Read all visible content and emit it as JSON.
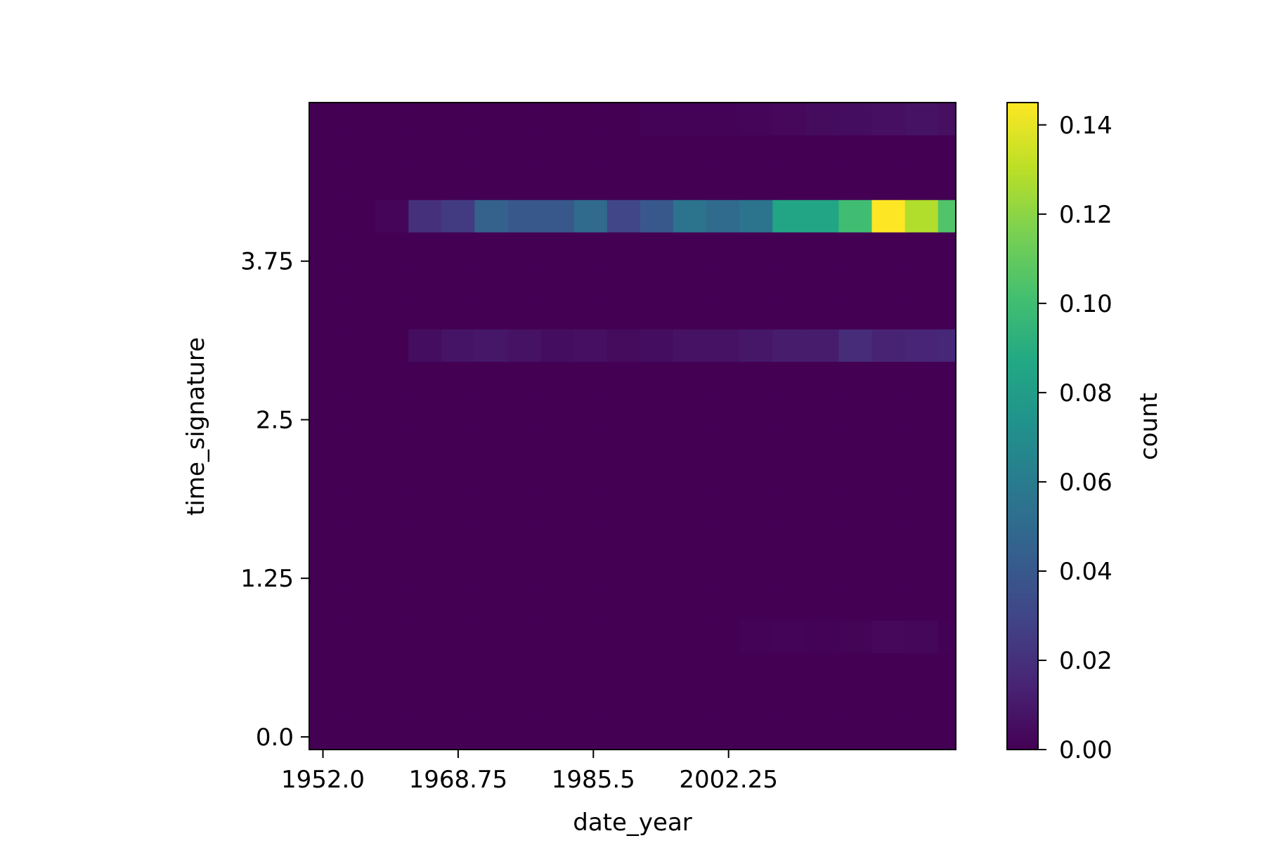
{
  "chart_data": {
    "type": "heatmap",
    "title": "",
    "xlabel": "date_year",
    "ylabel": "time_signature",
    "colorbar_label": "count",
    "colormap": "viridis",
    "xlim": [
      1950.3,
      2030.4
    ],
    "ylim": [
      -0.1,
      5.0
    ],
    "x_bins": [
      1950.3,
      1954.4,
      1958.5,
      1962.6,
      1966.7,
      1970.8,
      1974.9,
      1979.0,
      1983.1,
      1987.2,
      1991.3,
      1995.4,
      1999.5,
      2003.6,
      2007.7,
      2011.8,
      2015.9,
      2020.0,
      2024.1,
      2028.2,
      2032.3
    ],
    "y_bins": [
      -0.1,
      0.155,
      0.41,
      0.665,
      0.92,
      1.175,
      1.43,
      1.685,
      1.94,
      2.195,
      2.45,
      2.705,
      2.96,
      3.215,
      3.47,
      3.725,
      3.98,
      4.235,
      4.49,
      4.745,
      5.0
    ],
    "x_ticks": [
      "1952.0",
      "1968.75",
      "1985.5",
      "2002.25"
    ],
    "x_tick_values": [
      1952.0,
      1968.75,
      1985.5,
      2002.25
    ],
    "y_ticks": [
      "0.0",
      "1.25",
      "2.5",
      "3.75"
    ],
    "y_tick_values": [
      0.0,
      1.25,
      2.5,
      3.75
    ],
    "colorbar_ticks": [
      "0.00",
      "0.02",
      "0.04",
      "0.06",
      "0.08",
      "0.10",
      "0.12",
      "0.14"
    ],
    "colorbar_tick_values": [
      0.0,
      0.02,
      0.04,
      0.06,
      0.08,
      0.1,
      0.12,
      0.14
    ],
    "vmin": 0.0,
    "vmax": 0.145,
    "cells": [
      {
        "row": 0,
        "values": [
          0,
          0,
          0,
          0,
          0,
          0,
          0,
          0,
          0,
          0,
          0,
          0,
          0,
          0,
          0,
          0,
          0,
          0,
          0,
          0
        ]
      },
      {
        "row": 1,
        "values": [
          0,
          0,
          0,
          0,
          0,
          0,
          0,
          0,
          0,
          0,
          0,
          0,
          0,
          0,
          0,
          0,
          0,
          0,
          0,
          0
        ]
      },
      {
        "row": 2,
        "values": [
          0,
          0,
          0,
          0,
          0,
          0,
          0,
          0,
          0,
          0,
          0,
          0,
          0,
          0,
          0,
          0,
          0,
          0,
          0,
          0
        ]
      },
      {
        "row": 3,
        "values": [
          0,
          0,
          0,
          0,
          0,
          0,
          0,
          0,
          0,
          0,
          0,
          0,
          0,
          0.001,
          0.0012,
          0.0008,
          0.0015,
          0.003,
          0.0025,
          0.0005
        ]
      },
      {
        "row": 4,
        "values": [
          0,
          0,
          0,
          0,
          0,
          0,
          0,
          0,
          0,
          0,
          0,
          0,
          0,
          0,
          0,
          0,
          0,
          0,
          0,
          0
        ]
      },
      {
        "row": 5,
        "values": [
          0,
          0,
          0,
          0,
          0,
          0,
          0,
          0,
          0,
          0,
          0,
          0,
          0,
          0,
          0,
          0,
          0,
          0,
          0,
          0
        ]
      },
      {
        "row": 6,
        "values": [
          0,
          0,
          0,
          0,
          0,
          0,
          0,
          0,
          0,
          0,
          0,
          0,
          0,
          0,
          0,
          0,
          0,
          0,
          0,
          0
        ]
      },
      {
        "row": 7,
        "values": [
          0,
          0,
          0,
          0,
          0,
          0,
          0,
          0,
          0,
          0,
          0,
          0,
          0,
          0,
          0,
          0,
          0,
          0,
          0,
          0
        ]
      },
      {
        "row": 8,
        "values": [
          0,
          0,
          0,
          0,
          0,
          0,
          0,
          0,
          0,
          0,
          0,
          0,
          0,
          0,
          0,
          0,
          0,
          0,
          0,
          0
        ]
      },
      {
        "row": 9,
        "values": [
          0,
          0,
          0,
          0,
          0,
          0,
          0,
          0,
          0,
          0,
          0,
          0,
          0,
          0,
          0,
          0,
          0,
          0,
          0,
          0
        ]
      },
      {
        "row": 10,
        "values": [
          0,
          0,
          0,
          0,
          0,
          0,
          0,
          0,
          0,
          0,
          0,
          0,
          0,
          0,
          0,
          0,
          0,
          0,
          0,
          0
        ]
      },
      {
        "row": 11,
        "values": [
          0,
          0,
          0,
          0,
          0,
          0,
          0,
          0,
          0,
          0,
          0,
          0,
          0,
          0,
          0,
          0,
          0,
          0,
          0,
          0
        ]
      },
      {
        "row": 12,
        "values": [
          0,
          0,
          0,
          0.005,
          0.008,
          0.009,
          0.007,
          0.005,
          0.006,
          0.004,
          0.005,
          0.007,
          0.007,
          0.009,
          0.011,
          0.011,
          0.018,
          0.014,
          0.015,
          0.016
        ]
      },
      {
        "row": 13,
        "values": [
          0,
          0,
          0,
          0,
          0,
          0,
          0,
          0,
          0,
          0,
          0,
          0,
          0,
          0,
          0,
          0,
          0,
          0,
          0,
          0
        ]
      },
      {
        "row": 14,
        "values": [
          0,
          0,
          0,
          0,
          0,
          0,
          0,
          0,
          0,
          0,
          0,
          0,
          0,
          0,
          0,
          0,
          0,
          0,
          0,
          0
        ]
      },
      {
        "row": 15,
        "values": [
          0,
          0,
          0,
          0,
          0,
          0,
          0,
          0,
          0,
          0,
          0,
          0,
          0,
          0,
          0,
          0,
          0,
          0,
          0,
          0
        ]
      },
      {
        "row": 16,
        "values": [
          0,
          0,
          0.002,
          0.02,
          0.025,
          0.045,
          0.04,
          0.04,
          0.05,
          0.03,
          0.04,
          0.055,
          0.05,
          0.055,
          0.085,
          0.085,
          0.1,
          0.145,
          0.128,
          0.105
        ]
      },
      {
        "row": 17,
        "values": [
          0,
          0,
          0,
          0,
          0,
          0,
          0,
          0,
          0,
          0,
          0,
          0,
          0,
          0,
          0,
          0,
          0,
          0,
          0,
          0
        ]
      },
      {
        "row": 18,
        "values": [
          0,
          0,
          0,
          0,
          0,
          0,
          0,
          0,
          0,
          0,
          0,
          0,
          0,
          0,
          0,
          0,
          0,
          0,
          0,
          0
        ]
      },
      {
        "row": 19,
        "values": [
          0,
          0,
          0,
          0,
          0,
          0,
          0,
          0,
          0,
          0,
          0.001,
          0.001,
          0.001,
          0.002,
          0.003,
          0.004,
          0.005,
          0.006,
          0.007,
          0.006
        ]
      }
    ],
    "grid": false
  }
}
